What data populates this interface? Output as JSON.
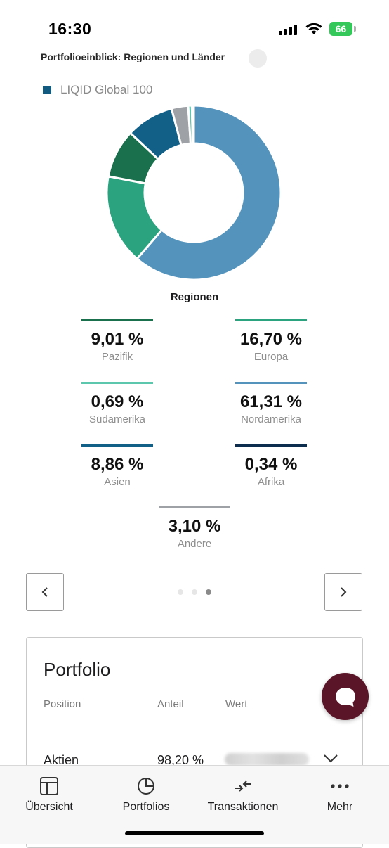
{
  "status_bar": {
    "time": "16:30",
    "battery": "66"
  },
  "section": {
    "title": "Portfolioeinblick: Regionen und Länder"
  },
  "legend": {
    "label": "LIQID Global 100",
    "color": "#125a80"
  },
  "chart_data": {
    "type": "pie",
    "title": "Regionen",
    "donut": true,
    "categories": [
      "Nordamerika",
      "Europa",
      "Pazifik",
      "Asien",
      "Andere",
      "Südamerika",
      "Afrika"
    ],
    "values": [
      61.31,
      16.7,
      9.01,
      8.86,
      3.1,
      0.69,
      0.34
    ],
    "colors": [
      "#5494bc",
      "#2aa37e",
      "#1a6f4c",
      "#125f87",
      "#9ea2a6",
      "#5cc7ad",
      "#0d2d4f"
    ]
  },
  "stats": [
    {
      "value": "9,01 %",
      "label": "Pazifik",
      "color": "#1a6f4c"
    },
    {
      "value": "16,70 %",
      "label": "Europa",
      "color": "#2aa37e"
    },
    {
      "value": "0,69 %",
      "label": "Südamerika",
      "color": "#5cc7ad"
    },
    {
      "value": "61,31 %",
      "label": "Nordamerika",
      "color": "#5494bc"
    },
    {
      "value": "8,86 %",
      "label": "Asien",
      "color": "#125f87"
    },
    {
      "value": "0,34 %",
      "label": "Afrika",
      "color": "#0d2d4f"
    },
    {
      "value": "3,10 %",
      "label": "Andere",
      "color": "#9ea2a6"
    }
  ],
  "pager": {
    "total": 3,
    "active": 3
  },
  "portfolio": {
    "title": "Portfolio",
    "headers": {
      "position": "Position",
      "share": "Anteil",
      "value": "Wert"
    },
    "rows": [
      {
        "position": "Aktien",
        "share": "98,20 %"
      }
    ]
  },
  "tabs": [
    {
      "label": "Übersicht",
      "icon": "layout-icon"
    },
    {
      "label": "Portfolios",
      "icon": "pie-chart-icon"
    },
    {
      "label": "Transaktionen",
      "icon": "arrows-icon"
    },
    {
      "label": "Mehr",
      "icon": "more-icon"
    }
  ]
}
